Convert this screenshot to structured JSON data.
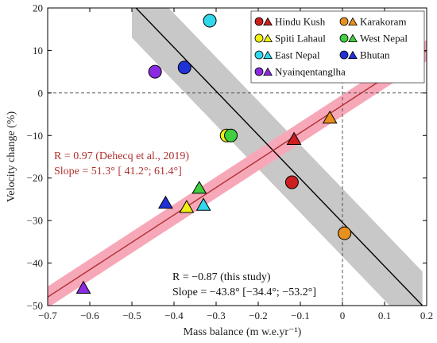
{
  "chart_data": {
    "type": "scatter",
    "xlabel": "Mass balance (m w.e.yr⁻¹)",
    "ylabel": "Velocity change (%)",
    "xlim": [
      -0.7,
      0.2
    ],
    "ylim": [
      -50,
      20
    ],
    "xticks": [
      -0.7,
      -0.6,
      -0.5,
      -0.4,
      -0.3,
      -0.2,
      -0.1,
      0,
      0.1,
      0.2
    ],
    "xtick_labels": [
      "−0.7",
      "−0.6",
      "−0.5",
      "−0.4",
      "−0.3",
      "−0.2",
      "−0.1",
      "0",
      "0.1",
      "0.2"
    ],
    "yticks": [
      -50,
      -40,
      -30,
      -20,
      -10,
      0,
      10,
      20
    ],
    "ytick_labels": [
      "−50",
      "−40",
      "−30",
      "−20",
      "−10",
      "0",
      "10",
      "20"
    ],
    "grid": false,
    "zero_reference_lines": true,
    "legend_position": "top-right",
    "regions": [
      {
        "name": "Hindu Kush",
        "color": "#cc1f1f",
        "circle": {
          "x": -0.12,
          "y": -21
        },
        "triangle": {
          "x": -0.115,
          "y": -11
        }
      },
      {
        "name": "Karakoram",
        "color": "#e8901e",
        "circle": {
          "x": 0.005,
          "y": -33
        },
        "triangle": {
          "x": -0.03,
          "y": -6
        }
      },
      {
        "name": "Spiti Lahaul",
        "color": "#f0f011",
        "circle": {
          "x": -0.275,
          "y": -10
        },
        "triangle": {
          "x": -0.37,
          "y": -27
        }
      },
      {
        "name": "West Nepal",
        "color": "#3fcf3f",
        "circle": {
          "x": -0.265,
          "y": -10
        },
        "triangle": {
          "x": -0.34,
          "y": -22.5
        }
      },
      {
        "name": "East Nepal",
        "color": "#30d8ec",
        "circle": {
          "x": -0.315,
          "y": 17
        },
        "triangle": {
          "x": -0.33,
          "y": -26.5
        }
      },
      {
        "name": "Bhutan",
        "color": "#1f32d8",
        "circle": {
          "x": -0.375,
          "y": 6
        },
        "triangle": {
          "x": -0.42,
          "y": -26
        }
      },
      {
        "name": "Nyainqentanglha",
        "color": "#8a2be2",
        "circle": {
          "x": -0.445,
          "y": 5
        },
        "triangle": {
          "x": -0.615,
          "y": -46
        }
      }
    ],
    "fits": [
      {
        "label": "this study",
        "color": "#000000",
        "band_color": "#c8c8c8",
        "x": [
          -0.5,
          0.19
        ],
        "y": [
          21,
          -50
        ],
        "band_halfwidth": 8
      },
      {
        "label": "Dehecq et al., 2019",
        "color": "#b03030",
        "band_color": "#f7a8b8",
        "x": [
          -0.7,
          0.2
        ],
        "y": [
          -48,
          10
        ],
        "band_halfwidth": 2.5
      }
    ],
    "annotations": {
      "dehecq_r": "R = 0.97  (Dehecq et al., 2019)",
      "dehecq_slope": "Slope =  51.3° [ 41.2°;  61.4°]",
      "study_r": "R = −0.87   (this study)",
      "study_slope": "Slope = −43.8° [−34.4°; −53.2°]"
    }
  }
}
